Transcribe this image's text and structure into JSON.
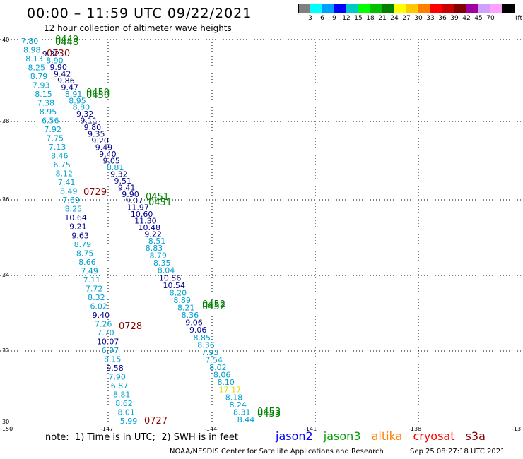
{
  "title": "00:00 – 11:59 UTC 09/22/2021",
  "subtitle": "12 hour collection of altimeter wave heights",
  "scale": {
    "colors": [
      "#808080",
      "#00ffff",
      "#00a0ff",
      "#0000ff",
      "#00c8c8",
      "#00ff00",
      "#00c000",
      "#008000",
      "#ffff00",
      "#ffc800",
      "#ff8000",
      "#ff0000",
      "#c80000",
      "#800000",
      "#a000a0",
      "#d0a0ff",
      "#ffa0ff",
      "#000000"
    ],
    "ticks": [
      "3",
      "6",
      "9",
      "12",
      "15",
      "18",
      "21",
      "24",
      "27",
      "30",
      "33",
      "36",
      "39",
      "42",
      "45",
      "70"
    ],
    "unit": "(ft)"
  },
  "axes": {
    "lon_labels": [
      "-150",
      "-147",
      "-144",
      "-141",
      "-138",
      "-13"
    ],
    "lat_labels": [
      "40",
      "38",
      "36",
      "34",
      "32",
      "30"
    ]
  },
  "colors": {
    "jason2": "#00008b",
    "jason3": "#008000",
    "altika": "#ff8000",
    "cryosat": "#dd0000",
    "s3a": "#8b0000",
    "light": "#00a0d0",
    "cyan": "#00c8e0"
  },
  "left_track": {
    "values": [
      "7.80",
      "8.98",
      "8.13",
      "8.25",
      "8.79",
      "7.93",
      "8.15",
      "7.38",
      "8.95",
      "6.56",
      "7.92",
      "7.75",
      "7.13",
      "8.46",
      "6.75",
      "8.12",
      "7.41",
      "8.49",
      "7.69",
      "8.25",
      "10.64",
      "9.21",
      "9.63",
      "8.79",
      "8.75",
      "8.66",
      "7.49",
      "7.11",
      "7.72",
      "8.32",
      "6.02",
      "9.40",
      "7.26",
      "7.70",
      "10.07",
      "6.97",
      "8.15",
      "9.58",
      "7.90",
      "6.87",
      "8.81",
      "8.62",
      "8.01",
      "5.99"
    ]
  },
  "mid_track": {
    "values": [
      "9.32",
      "8.90",
      "9.90",
      "9.42",
      "9.86",
      "9.47",
      "8.91",
      "8.95",
      "8.80",
      "9.32",
      "9.11",
      "9.80",
      "9.35",
      "9.20",
      "9.49",
      "9.40",
      "9.05",
      "8.81",
      "9.32",
      "9.51",
      "9.41",
      "9.90",
      "9.07",
      "11.97",
      "10.60",
      "11.30",
      "10.48",
      "9.22",
      "8.51"
    ]
  },
  "right_track": {
    "values": [
      "8.83",
      "8.79",
      "8.35",
      "8.04",
      "10.56",
      "10.54",
      "8.20",
      "8.89",
      "8.21",
      "8.36",
      "9.06",
      "9.06",
      "8.85",
      "8.36",
      "7.93",
      "7.54",
      "8.02",
      "8.06",
      "8.10",
      "17.17",
      "8.18",
      "8.24",
      "8.31",
      "8.44"
    ]
  },
  "time_labels": [
    {
      "text": "0449",
      "sat": "jason3"
    },
    {
      "text": "0448",
      "sat": "jason3"
    },
    {
      "text": "0730",
      "sat": "s3a"
    },
    {
      "text": "0450",
      "sat": "jason3"
    },
    {
      "text": "0450",
      "sat": "jason3"
    },
    {
      "text": "0729",
      "sat": "s3a"
    },
    {
      "text": "0451",
      "sat": "jason3"
    },
    {
      "text": "0451",
      "sat": "jason3"
    },
    {
      "text": "0452",
      "sat": "jason3"
    },
    {
      "text": "0452",
      "sat": "jason3"
    },
    {
      "text": "0728",
      "sat": "s3a"
    },
    {
      "text": "0453",
      "sat": "jason3"
    },
    {
      "text": "0453",
      "sat": "jason3"
    },
    {
      "text": "0727",
      "sat": "s3a"
    }
  ],
  "note": "note:  1) Time is in UTC;  2) SWH is in feet",
  "legend": [
    {
      "name": "jason2",
      "color": "#0000ff"
    },
    {
      "name": "jason3",
      "color": "#00a000"
    },
    {
      "name": "altika",
      "color": "#ff8000"
    },
    {
      "name": "cryosat",
      "color": "#ff0000"
    },
    {
      "name": "s3a",
      "color": "#8b0000"
    }
  ],
  "credit": "NOAA/NESDIS Center for Satellite Applications and Research",
  "credit_time": "Sep 25 08:27:18 UTC 2021"
}
